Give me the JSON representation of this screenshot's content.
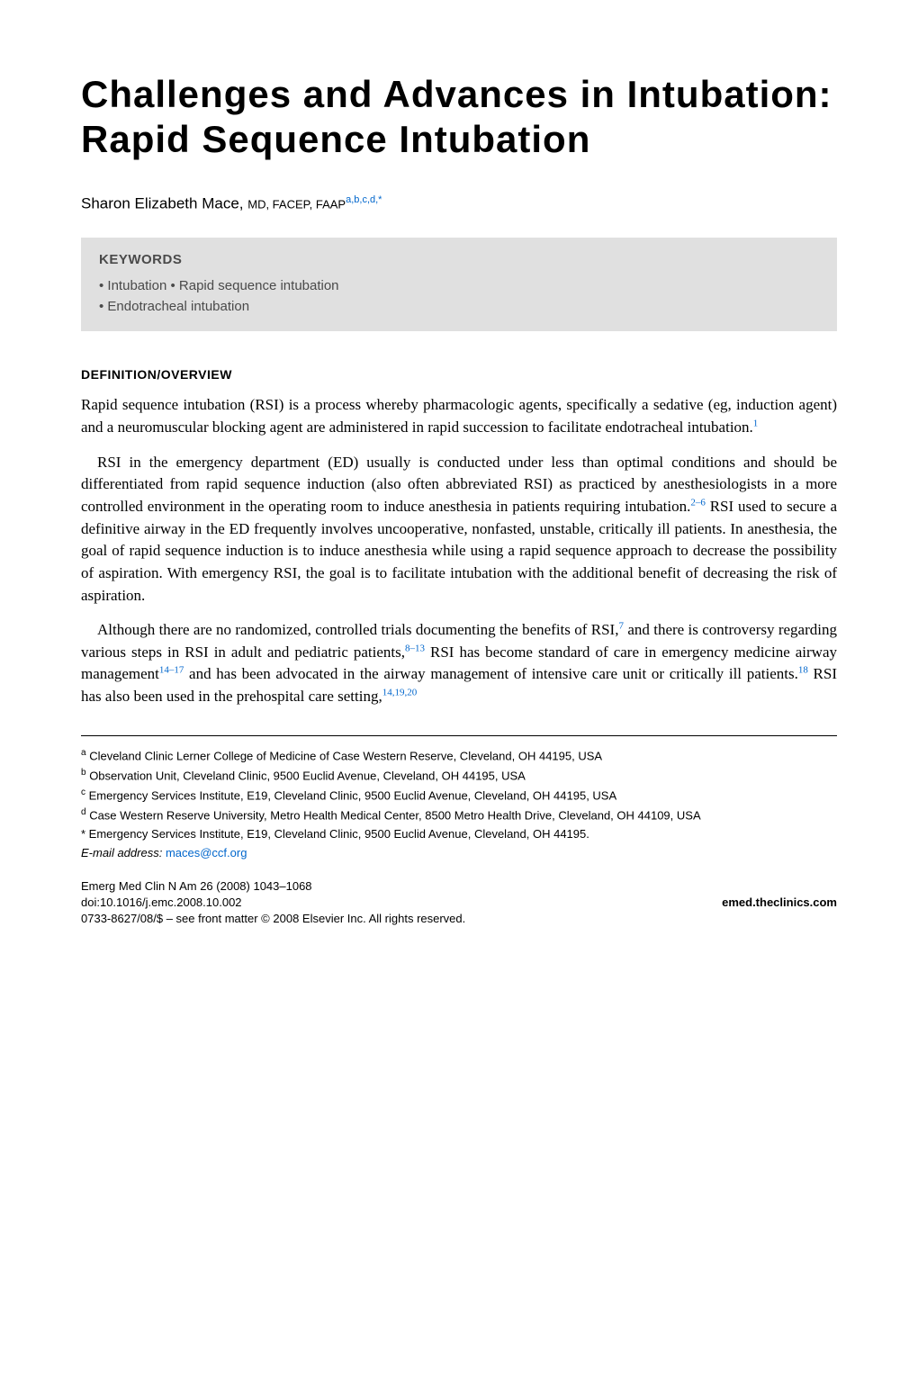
{
  "title": "Challenges and Advances in Intubation: Rapid Sequence Intubation",
  "author": {
    "name": "Sharon Elizabeth Mace,",
    "role": "MD, FACEP, FAAP",
    "affil_marks": "a,b,c,d,*"
  },
  "keywords": {
    "heading": "KEYWORDS",
    "line1": "• Intubation • Rapid sequence intubation",
    "line2": "• Endotracheal intubation"
  },
  "section_heading": "DEFINITION/OVERVIEW",
  "paragraphs": {
    "p1_a": "Rapid sequence intubation (RSI) is a process whereby pharmacologic agents, specifically a sedative (eg, induction agent) and a neuromuscular blocking agent are administered in rapid succession to facilitate endotracheal intubation.",
    "p1_ref1": "1",
    "p2_a": "RSI in the emergency department (ED) usually is conducted under less than optimal conditions and should be differentiated from rapid sequence induction (also often abbreviated RSI) as practiced by anesthesiologists in a more controlled environment in the operating room to induce anesthesia in patients requiring intubation.",
    "p2_ref1": "2–6",
    "p2_b": " RSI used to secure a definitive airway in the ED frequently involves uncooperative, nonfasted, unstable, critically ill patients. In anesthesia, the goal of rapid sequence induction is to induce anesthesia while using a rapid sequence approach to decrease the possibility of aspiration. With emergency RSI, the goal is to facilitate intubation with the additional benefit of decreasing the risk of aspiration.",
    "p3_a": "Although there are no randomized, controlled trials documenting the benefits of RSI,",
    "p3_ref1": "7",
    "p3_b": " and there is controversy regarding various steps in RSI in adult and pediatric patients,",
    "p3_ref2": "8–13",
    "p3_c": " RSI has become standard of care in emergency medicine airway management",
    "p3_ref3": "14–17",
    "p3_d": " and has been advocated in the airway management of intensive care unit or critically ill patients.",
    "p3_ref4": "18",
    "p3_e": " RSI has also been used in the prehospital care setting,",
    "p3_ref5": "14,19,20"
  },
  "footnotes": {
    "a": "Cleveland Clinic Lerner College of Medicine of Case Western Reserve, Cleveland, OH 44195, USA",
    "b": "Observation Unit, Cleveland Clinic, 9500 Euclid Avenue, Cleveland, OH 44195, USA",
    "c": "Emergency Services Institute, E19, Cleveland Clinic, 9500 Euclid Avenue, Cleveland, OH 44195, USA",
    "d": "Case Western Reserve University, Metro Health Medical Center, 8500 Metro Health Drive, Cleveland, OH 44109, USA",
    "star": "Emergency Services Institute, E19, Cleveland Clinic, 9500 Euclid Avenue, Cleveland, OH 44195.",
    "email_label": "E-mail address:",
    "email": "maces@ccf.org"
  },
  "footer": {
    "journal": "Emerg Med Clin N Am 26 (2008) 1043–1068",
    "doi": "doi:10.1016/j.emc.2008.10.002",
    "site": "emed.theclinics.com",
    "copyright": "0733-8627/08/$ – see front matter © 2008 Elsevier Inc. All rights reserved."
  },
  "style": {
    "background": "#ffffff",
    "text_color": "#000000",
    "link_color": "#0066cc",
    "box_bg": "#e0e0e0",
    "box_text": "#4a4a4a",
    "title_fontsize": 42,
    "body_fontsize": 17,
    "footnote_fontsize": 13
  }
}
